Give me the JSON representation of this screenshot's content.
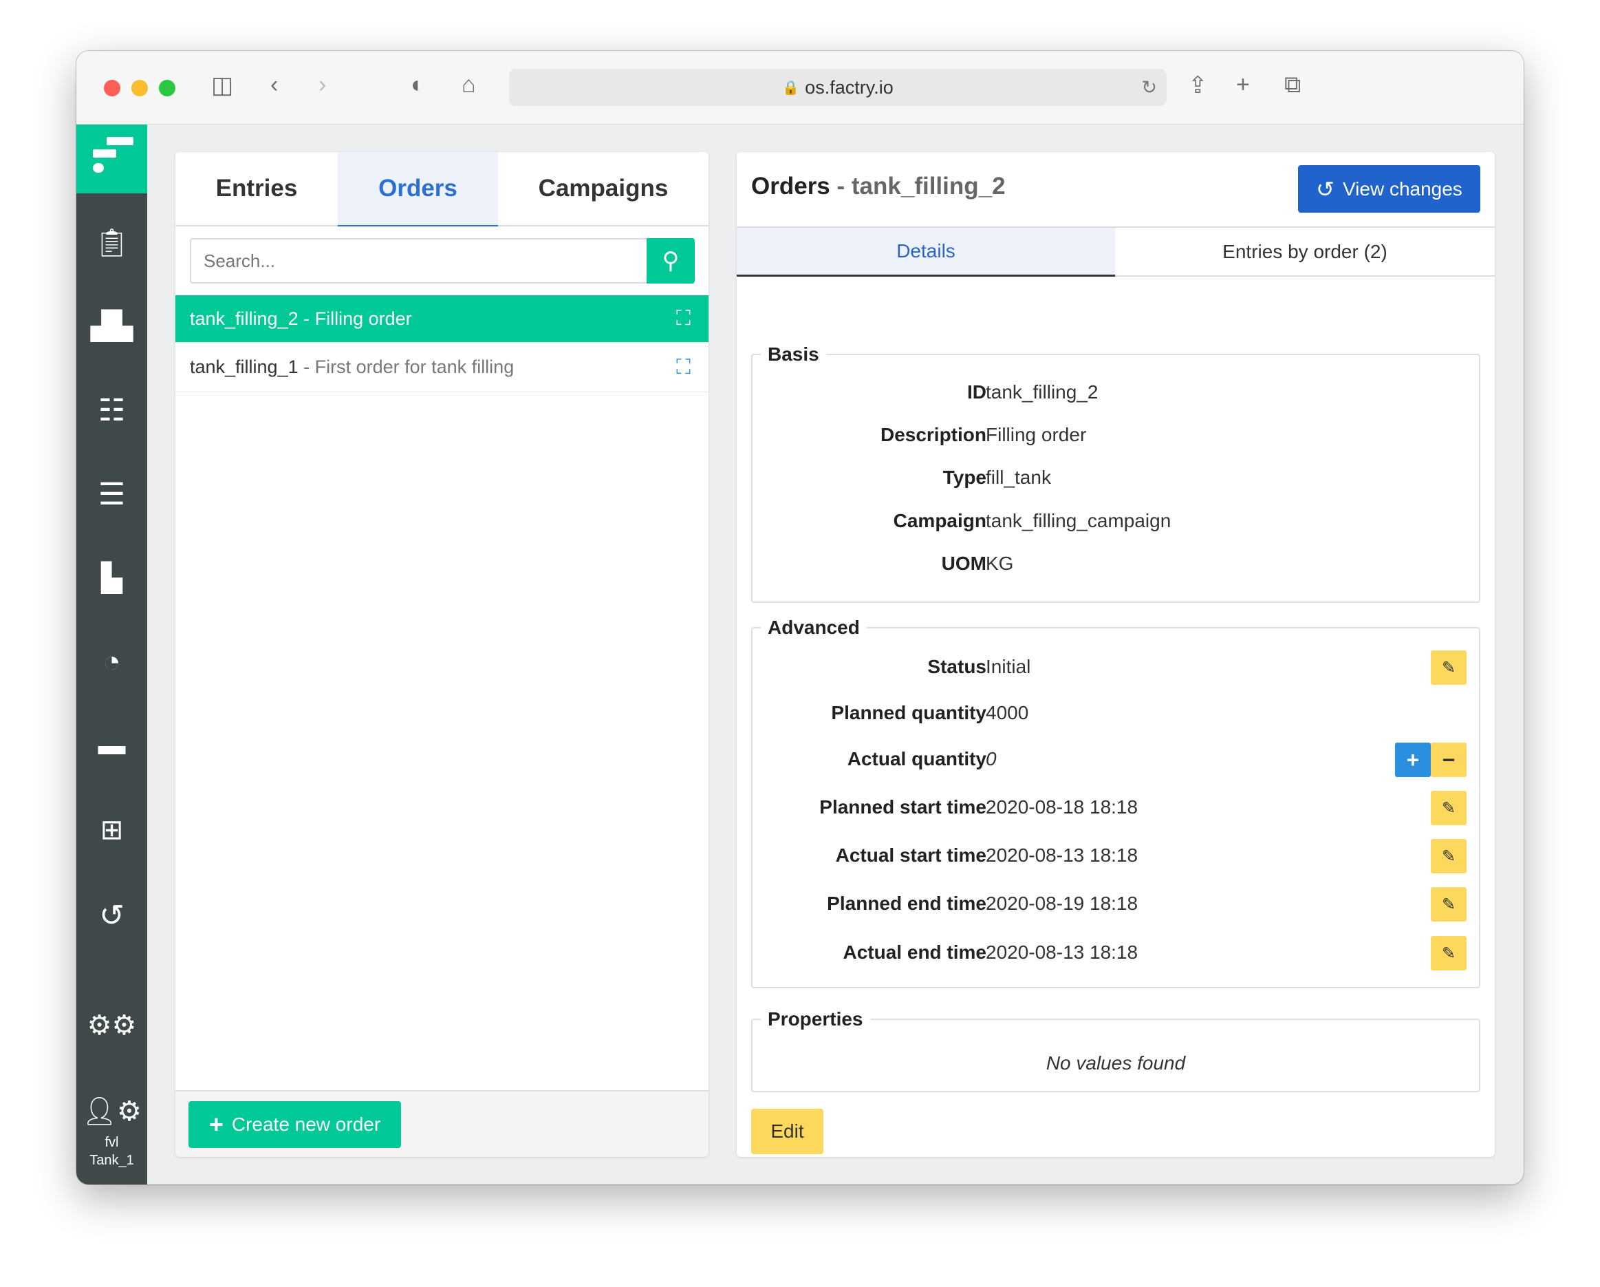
{
  "browser": {
    "url": "os.factry.io"
  },
  "sidebar": {
    "user_line1": "fvl",
    "user_line2": "Tank_1",
    "accent": "#00c896"
  },
  "left": {
    "tabs": [
      {
        "label": "Entries"
      },
      {
        "label": "Orders"
      },
      {
        "label": "Campaigns"
      }
    ],
    "active_tab": "Orders",
    "search_placeholder": "Search...",
    "orders": [
      {
        "id": "tank_filling_2",
        "sep": " - ",
        "desc": "Filling order",
        "selected": true
      },
      {
        "id": "tank_filling_1",
        "sep": " - ",
        "desc": "First order for tank filling",
        "selected": false
      }
    ],
    "create_label": "Create new order"
  },
  "right": {
    "title_prefix": "Orders",
    "title_sep": " - ",
    "title_id": "tank_filling_2",
    "view_changes": "View changes",
    "tabs": [
      {
        "label": "Details"
      },
      {
        "label": "Entries by order (2)"
      }
    ],
    "basis": {
      "legend": "Basis",
      "rows": [
        {
          "label": "ID",
          "value": "tank_filling_2"
        },
        {
          "label": "Description",
          "value": "Filling order"
        },
        {
          "label": "Type",
          "value": "fill_tank"
        },
        {
          "label": "Campaign",
          "value": "tank_filling_campaign"
        },
        {
          "label": "UOM",
          "value": "KG"
        }
      ]
    },
    "advanced": {
      "legend": "Advanced",
      "rows": [
        {
          "label": "Status",
          "value": "Initial"
        },
        {
          "label": "Planned quantity",
          "value": "4000"
        },
        {
          "label": "Actual quantity",
          "value": "0"
        },
        {
          "label": "Planned start time",
          "value": "2020-08-18 18:18"
        },
        {
          "label": "Actual start time",
          "value": "2020-08-13 18:18"
        },
        {
          "label": "Planned end time",
          "value": "2020-08-19 18:18"
        },
        {
          "label": "Actual end time",
          "value": "2020-08-13 18:18"
        }
      ]
    },
    "properties": {
      "legend": "Properties",
      "empty": "No values found"
    },
    "edit_label": "Edit"
  }
}
